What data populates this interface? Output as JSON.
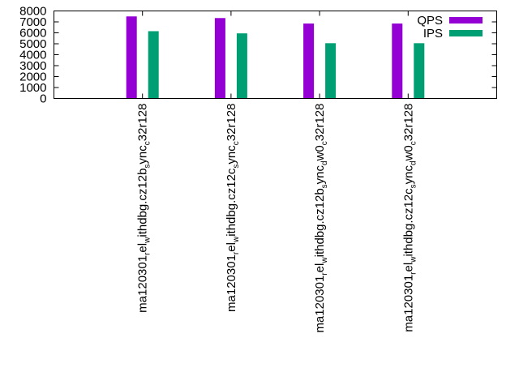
{
  "chart_data": {
    "type": "bar",
    "title": "",
    "xlabel": "",
    "ylabel": "",
    "ylim": [
      0,
      8000
    ],
    "yticks": [
      "0",
      "1000",
      "2000",
      "3000",
      "4000",
      "5000",
      "6000",
      "7000",
      "8000"
    ],
    "categories": [
      [
        {
          "t": "ma120301"
        },
        {
          "t": "r",
          "sub": true
        },
        {
          "t": "el"
        },
        {
          "t": "w",
          "sub": true
        },
        {
          "t": "ithdbg.cz12b"
        },
        {
          "t": "s",
          "sub": true
        },
        {
          "t": "ync"
        },
        {
          "t": "c",
          "sub": true
        },
        {
          "t": "32r128"
        }
      ],
      [
        {
          "t": "ma120301"
        },
        {
          "t": "r",
          "sub": true
        },
        {
          "t": "el"
        },
        {
          "t": "w",
          "sub": true
        },
        {
          "t": "ithdbg.cz12c"
        },
        {
          "t": "s",
          "sub": true
        },
        {
          "t": "ync"
        },
        {
          "t": "c",
          "sub": true
        },
        {
          "t": "32r128"
        }
      ],
      [
        {
          "t": "ma120301"
        },
        {
          "t": "r",
          "sub": true
        },
        {
          "t": "el"
        },
        {
          "t": "w",
          "sub": true
        },
        {
          "t": "ithdbg.cz12b"
        },
        {
          "t": "s",
          "sub": true
        },
        {
          "t": "ync"
        },
        {
          "t": "d",
          "sub": true
        },
        {
          "t": "w0"
        },
        {
          "t": "c",
          "sub": true
        },
        {
          "t": "32r128"
        }
      ],
      [
        {
          "t": "ma120301"
        },
        {
          "t": "r",
          "sub": true
        },
        {
          "t": "el"
        },
        {
          "t": "w",
          "sub": true
        },
        {
          "t": "ithdbg.cz12c"
        },
        {
          "t": "s",
          "sub": true
        },
        {
          "t": "ync"
        },
        {
          "t": "d",
          "sub": true
        },
        {
          "t": "w0"
        },
        {
          "t": "c",
          "sub": true
        },
        {
          "t": "32r128"
        }
      ]
    ],
    "series": [
      {
        "name": "QPS",
        "color": "#9400d3",
        "values": [
          7500,
          7350,
          6850,
          6850
        ]
      },
      {
        "name": "IPS",
        "color": "#009e73",
        "values": [
          6150,
          5950,
          5050,
          5050
        ]
      }
    ],
    "legend_position": "top-right",
    "grid": false
  }
}
